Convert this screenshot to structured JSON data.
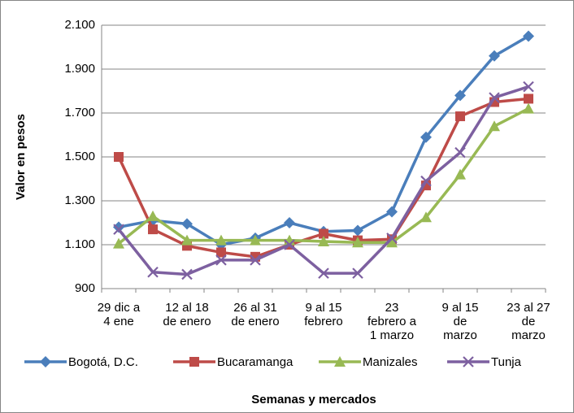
{
  "chart_data": {
    "type": "line",
    "y_label": "Valor en pesos",
    "x_label": "Semanas y mercados",
    "categories": [
      "29 dic a 4 ene",
      null,
      "12 al 18 de enero",
      null,
      "26 al 31 de enero",
      null,
      "9 al 15 febrero",
      null,
      "23 febrero a 1 marzo",
      null,
      "9 al 15 de marzo",
      null,
      "23 al 27 de marzo"
    ],
    "series": [
      {
        "name": "Bogotá, D.C.",
        "color": "#4a7ebb",
        "marker": "diamond",
        "values": [
          1180,
          1210,
          1195,
          1100,
          1130,
          1200,
          1160,
          1165,
          1250,
          1590,
          1780,
          1960,
          2050
        ]
      },
      {
        "name": "Bucaramanga",
        "color": "#be4b48",
        "marker": "square",
        "values": [
          1500,
          1170,
          1095,
          1065,
          1045,
          1100,
          1150,
          1120,
          1125,
          1370,
          1685,
          1750,
          1765
        ]
      },
      {
        "name": "Manizales",
        "color": "#98b954",
        "marker": "triangle",
        "values": [
          1105,
          1230,
          1120,
          1120,
          1120,
          1120,
          1115,
          1110,
          1110,
          1225,
          1420,
          1640,
          1720
        ]
      },
      {
        "name": "Tunja",
        "color": "#7d60a0",
        "marker": "x",
        "values": [
          1170,
          975,
          965,
          1030,
          1030,
          1100,
          970,
          970,
          1130,
          1390,
          1520,
          1770,
          1820
        ]
      }
    ],
    "ylim": [
      900,
      2100
    ],
    "yticks": [
      900,
      {
        "value": 1100,
        "label": "1.100"
      },
      {
        "value": 1300,
        "label": "1.300"
      },
      {
        "value": 1500,
        "label": "1.500"
      },
      {
        "value": 1700,
        "label": "1.700"
      },
      {
        "value": 1900,
        "label": "1.900"
      },
      {
        "value": 2100,
        "label": "2.100"
      }
    ],
    "grid": true,
    "legend": "bottom"
  }
}
